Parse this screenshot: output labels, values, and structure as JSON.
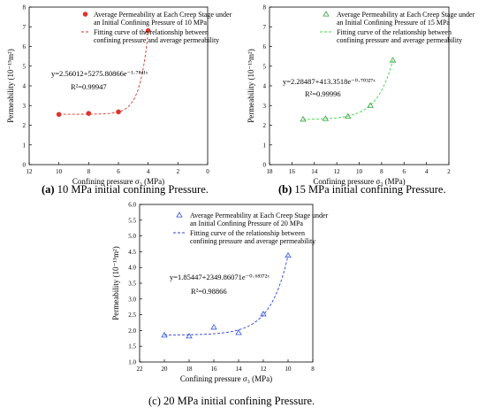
{
  "charts": [
    {
      "caption": {
        "tag": "(a)",
        "text": " 10 MPa initial confining Pressure."
      },
      "chart_data": {
        "type": "scatter",
        "xlabel": "Confining pressure σ₃ (MPa)",
        "ylabel": "Permeability (10⁻¹⁵m²)",
        "x_reversed": true,
        "xlim": [
          12,
          0
        ],
        "ylim": [
          0,
          8
        ],
        "xticks": [
          12,
          10,
          8,
          6,
          4,
          2,
          0
        ],
        "yticks": [
          0,
          1,
          2,
          3,
          4,
          5,
          6,
          7,
          8
        ],
        "series": [
          {
            "name": "Average Permeability at Each Creep Stage under an Initial Confining Pressure of 10 MPa",
            "marker": "filled-circle",
            "color": "#e0322e",
            "x": [
              10,
              8,
              6,
              4
            ],
            "y": [
              2.55,
              2.6,
              2.68,
              6.8
            ]
          },
          {
            "name": "Fitting curve of the relationship between confining pressure and average permeability",
            "style": "dashed",
            "color": "#e0322e",
            "fit": {
              "a": 2.56012,
              "b": 5275.80866,
              "k": 1.7841
            },
            "x_range": [
              10,
              4
            ]
          }
        ],
        "equation": "y=2.56012+5275.80866e⁻¹·⁷⁸⁴¹ˣ",
        "r2": "R²=0.99947",
        "legend_position": "top-right"
      }
    },
    {
      "caption": {
        "tag": "(b)",
        "text": " 15 MPa initial confining Pressure."
      },
      "chart_data": {
        "type": "scatter",
        "xlabel": "Confining pressure σ₃ (MPa)",
        "ylabel": "Permeability (10⁻¹⁵m²)",
        "x_reversed": true,
        "xlim": [
          18,
          2
        ],
        "ylim": [
          0,
          8
        ],
        "xticks": [
          18,
          16,
          14,
          12,
          10,
          8,
          6,
          4,
          2
        ],
        "yticks": [
          0,
          1,
          2,
          3,
          4,
          5,
          6,
          7,
          8
        ],
        "series": [
          {
            "name": "Average Permeability at Each Creep Stage under an Initial Confining Pressure of 15 MPa",
            "marker": "open-triangle",
            "color": "#2fa33a",
            "x": [
              15,
              13,
              11,
              9,
              7
            ],
            "y": [
              2.3,
              2.33,
              2.45,
              3.0,
              5.3
            ]
          },
          {
            "name": "Fitting curve of the relationship between confining pressure and average permeability",
            "style": "dashed",
            "color": "#3fd44a",
            "fit": {
              "a": 2.28487,
              "b": 413.3518,
              "k": 0.70327
            },
            "x_range": [
              15,
              7
            ]
          }
        ],
        "equation": "y=2.28487+413.3518e⁻⁰·⁷⁰³²⁷ˣ",
        "r2": "R²=0.99996",
        "legend_position": "top-right"
      }
    },
    {
      "caption": {
        "tag": "",
        "text": "(c) 20 MPa initial confining Pressure."
      },
      "chart_data": {
        "type": "scatter",
        "xlabel": "Confining pressure σ₃ (MPa)",
        "ylabel": "Permeability (10⁻¹⁵m²)",
        "x_reversed": true,
        "xlim": [
          22,
          8
        ],
        "ylim": [
          1.0,
          6.0
        ],
        "xticks": [
          22,
          20,
          18,
          16,
          14,
          12,
          10,
          8
        ],
        "yticks": [
          1.0,
          1.5,
          2.0,
          2.5,
          3.0,
          3.5,
          4.0,
          4.5,
          5.0,
          5.5,
          6.0
        ],
        "series": [
          {
            "name": "Average Permeability at Each Creep Stage under an Initial Confining Pressure of 20 MPa",
            "marker": "open-triangle",
            "color": "#2e4fe0",
            "x": [
              20,
              18,
              16,
              14,
              12,
              10
            ],
            "y": [
              1.85,
              1.82,
              2.1,
              1.93,
              2.52,
              4.38
            ]
          },
          {
            "name": "Fitting curve of the relationship between confining pressure and average permeability",
            "style": "dashed",
            "color": "#2e3fd8",
            "fit": {
              "a": 1.85447,
              "b": 2349.86071,
              "k": 0.68372
            },
            "x_range": [
              20,
              10
            ]
          }
        ],
        "equation": "y=1.85447+2349.86071e⁻⁰·⁶⁸³⁷²ˣ",
        "r2": "R²=0.98866",
        "legend_position": "top-right"
      }
    }
  ]
}
